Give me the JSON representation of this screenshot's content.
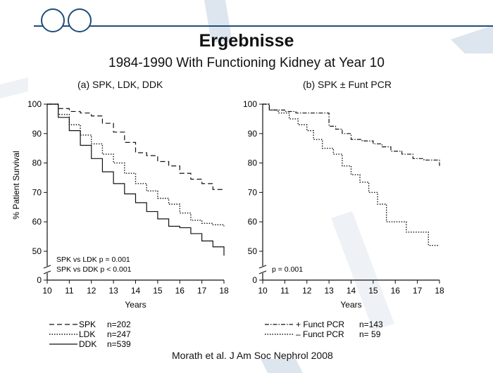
{
  "slide": {
    "title": "Ergebnisse",
    "subtitle": "1984-1990 With Functioning Kidney at Year 10",
    "citation": "Morath et al. J Am Soc Nephrol 2008"
  },
  "colors": {
    "accent": "#1f4e7a",
    "decor": "#dde6ee",
    "ink": "#111111"
  },
  "chart_data": [
    {
      "type": "line",
      "title": "(a) SPK, LDK, DDK",
      "xlabel": "Years",
      "ylabel": "% Patient Survival",
      "xlim": [
        10,
        18
      ],
      "ylim": [
        45,
        100
      ],
      "xticks": [
        10,
        11,
        12,
        13,
        14,
        15,
        16,
        17,
        18
      ],
      "yticks": [
        50,
        60,
        70,
        80,
        90,
        100
      ],
      "axis_break": true,
      "annotations": [
        "SPK vs LDK  p = 0.001",
        "SPK vs DDK  p < 0.001"
      ],
      "series": [
        {
          "name": "SPK",
          "n": "n=202",
          "style": "dashed",
          "x": [
            10,
            10.5,
            11,
            11.5,
            12,
            12.5,
            13,
            13.5,
            14,
            14.5,
            15,
            15.5,
            16,
            16.5,
            17,
            17.5,
            18
          ],
          "y": [
            100,
            98.5,
            97.5,
            97,
            96,
            93.5,
            90.5,
            87,
            83.5,
            82.5,
            80.5,
            79,
            76.5,
            74.5,
            73,
            71,
            71
          ]
        },
        {
          "name": "LDK",
          "n": "n=247",
          "style": "dotted",
          "x": [
            10,
            10.5,
            11,
            11.5,
            12,
            12.5,
            13,
            13.5,
            14,
            14.5,
            15,
            15.5,
            16,
            16.5,
            17,
            17.5,
            18
          ],
          "y": [
            100,
            96.5,
            93,
            89.5,
            86.5,
            83,
            80,
            76.5,
            73,
            70.5,
            68,
            66,
            63,
            60.5,
            59.5,
            59,
            58.5
          ]
        },
        {
          "name": "DDK",
          "n": "n=539",
          "style": "solid",
          "x": [
            10,
            10.5,
            11,
            11.5,
            12,
            12.5,
            13,
            13.5,
            14,
            14.5,
            15,
            15.5,
            16,
            16.5,
            17,
            17.5,
            18
          ],
          "y": [
            100,
            95.5,
            91,
            86,
            81.5,
            77,
            73,
            69.5,
            66.5,
            63.5,
            61,
            58.5,
            58,
            56,
            53.5,
            51.5,
            48.5
          ]
        }
      ]
    },
    {
      "type": "line",
      "title": "(b) SPK ± Funt PCR",
      "xlabel": "Years",
      "ylabel": "",
      "xlim": [
        10,
        18
      ],
      "ylim": [
        45,
        100
      ],
      "xticks": [
        10,
        11,
        12,
        13,
        14,
        15,
        16,
        17,
        18
      ],
      "yticks": [
        50,
        60,
        70,
        80,
        90,
        100
      ],
      "axis_break": true,
      "annotations": [
        "p = 0.001"
      ],
      "series": [
        {
          "name": "+ Funct PCR",
          "n": "n=143",
          "style": "dashdot",
          "x": [
            10,
            10.3,
            11,
            11.5,
            12,
            12.5,
            13,
            13.3,
            13.6,
            14,
            14.5,
            15,
            15.4,
            15.8,
            16.3,
            16.8,
            17.3,
            18
          ],
          "y": [
            100,
            98,
            97.5,
            97,
            97,
            97,
            92.5,
            91.5,
            90,
            88,
            87.5,
            86.5,
            85.5,
            84,
            83,
            81.5,
            81,
            79
          ]
        },
        {
          "name": "– Funct PCR",
          "n": "n=  59",
          "style": "dotted",
          "x": [
            10,
            10.3,
            10.7,
            11.2,
            11.6,
            12,
            12.3,
            12.7,
            13.2,
            13.6,
            14,
            14.4,
            14.8,
            15.2,
            15.6,
            16,
            16.5,
            17,
            17.5,
            18
          ],
          "y": [
            100,
            98,
            97,
            95,
            93,
            91,
            88,
            85,
            83,
            79,
            76,
            73.5,
            70,
            66,
            60,
            60,
            56.5,
            56.5,
            52,
            52
          ]
        }
      ]
    }
  ]
}
